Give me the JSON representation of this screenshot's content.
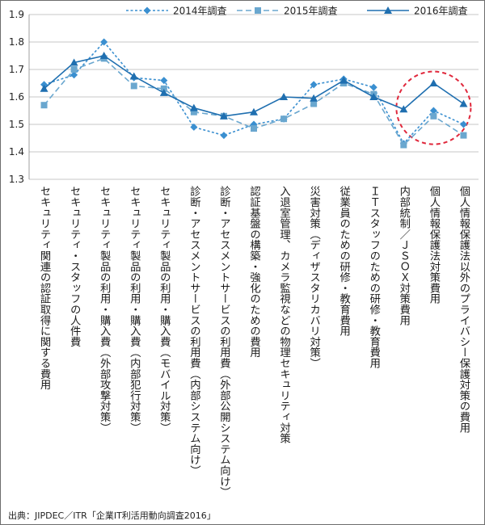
{
  "chart_data": {
    "type": "line",
    "categories": [
      "セキュリティ関連の認証取得に関する費用",
      "セキュリティ・スタッフの人件費",
      "セキュリティ製品の利用・購入費（外部攻撃対策）",
      "セキュリティ製品の利用・購入費（内部犯行対策）",
      "セキュリティ製品の利用・購入費（モバイル対策）",
      "診断・アセスメントサービスの利用費（内部システム向け）",
      "診断・アセスメントサービスの利用費（外部公開システム向け）",
      "認証基盤の構築・強化のための費用",
      "入退室管理、カメラ監視などの物理セキュリティ対策",
      "災害対策（ディザスタリカバリ対策）",
      "従業員のための研修・教育費用",
      "ＩＴスタッフのための研修・教育費用",
      "内部統制／ＪＳＯＸ対策費用",
      "個人情報保護法対策費用",
      "個人情報保護法以外のプライバシー保護対策の費用"
    ],
    "series": [
      {
        "name": "2014年調査",
        "color": "#3a8fd0",
        "style": "dotted-diamond",
        "values": [
          1.645,
          1.68,
          1.8,
          1.67,
          1.66,
          1.49,
          1.46,
          1.5,
          1.52,
          1.645,
          1.665,
          1.635,
          1.43,
          1.55,
          1.5
        ]
      },
      {
        "name": "2015年調査",
        "color": "#6aa7cf",
        "style": "dashed-square",
        "values": [
          1.57,
          1.7,
          1.74,
          1.64,
          1.63,
          1.545,
          1.53,
          1.485,
          1.52,
          1.575,
          1.65,
          1.61,
          1.425,
          1.53,
          1.46
        ]
      },
      {
        "name": "2016年調査",
        "color": "#1f6fb0",
        "style": "solid-triangle",
        "values": [
          1.63,
          1.725,
          1.75,
          1.675,
          1.615,
          1.56,
          1.53,
          1.545,
          1.6,
          1.595,
          1.66,
          1.6,
          1.555,
          1.65,
          1.575
        ]
      }
    ],
    "y_ticks": [
      "1.3",
      "1.4",
      "1.5",
      "1.6",
      "1.7",
      "1.8",
      "1.9"
    ],
    "ylim": [
      1.3,
      1.9
    ],
    "grid": true,
    "legend_position": "top-right",
    "highlight": {
      "type": "dashed-circle",
      "color": "#e0283c",
      "categories": [
        13
      ]
    }
  },
  "source": "出典：JIPDEC／ITR「企業IT利活用動向調査2016」"
}
